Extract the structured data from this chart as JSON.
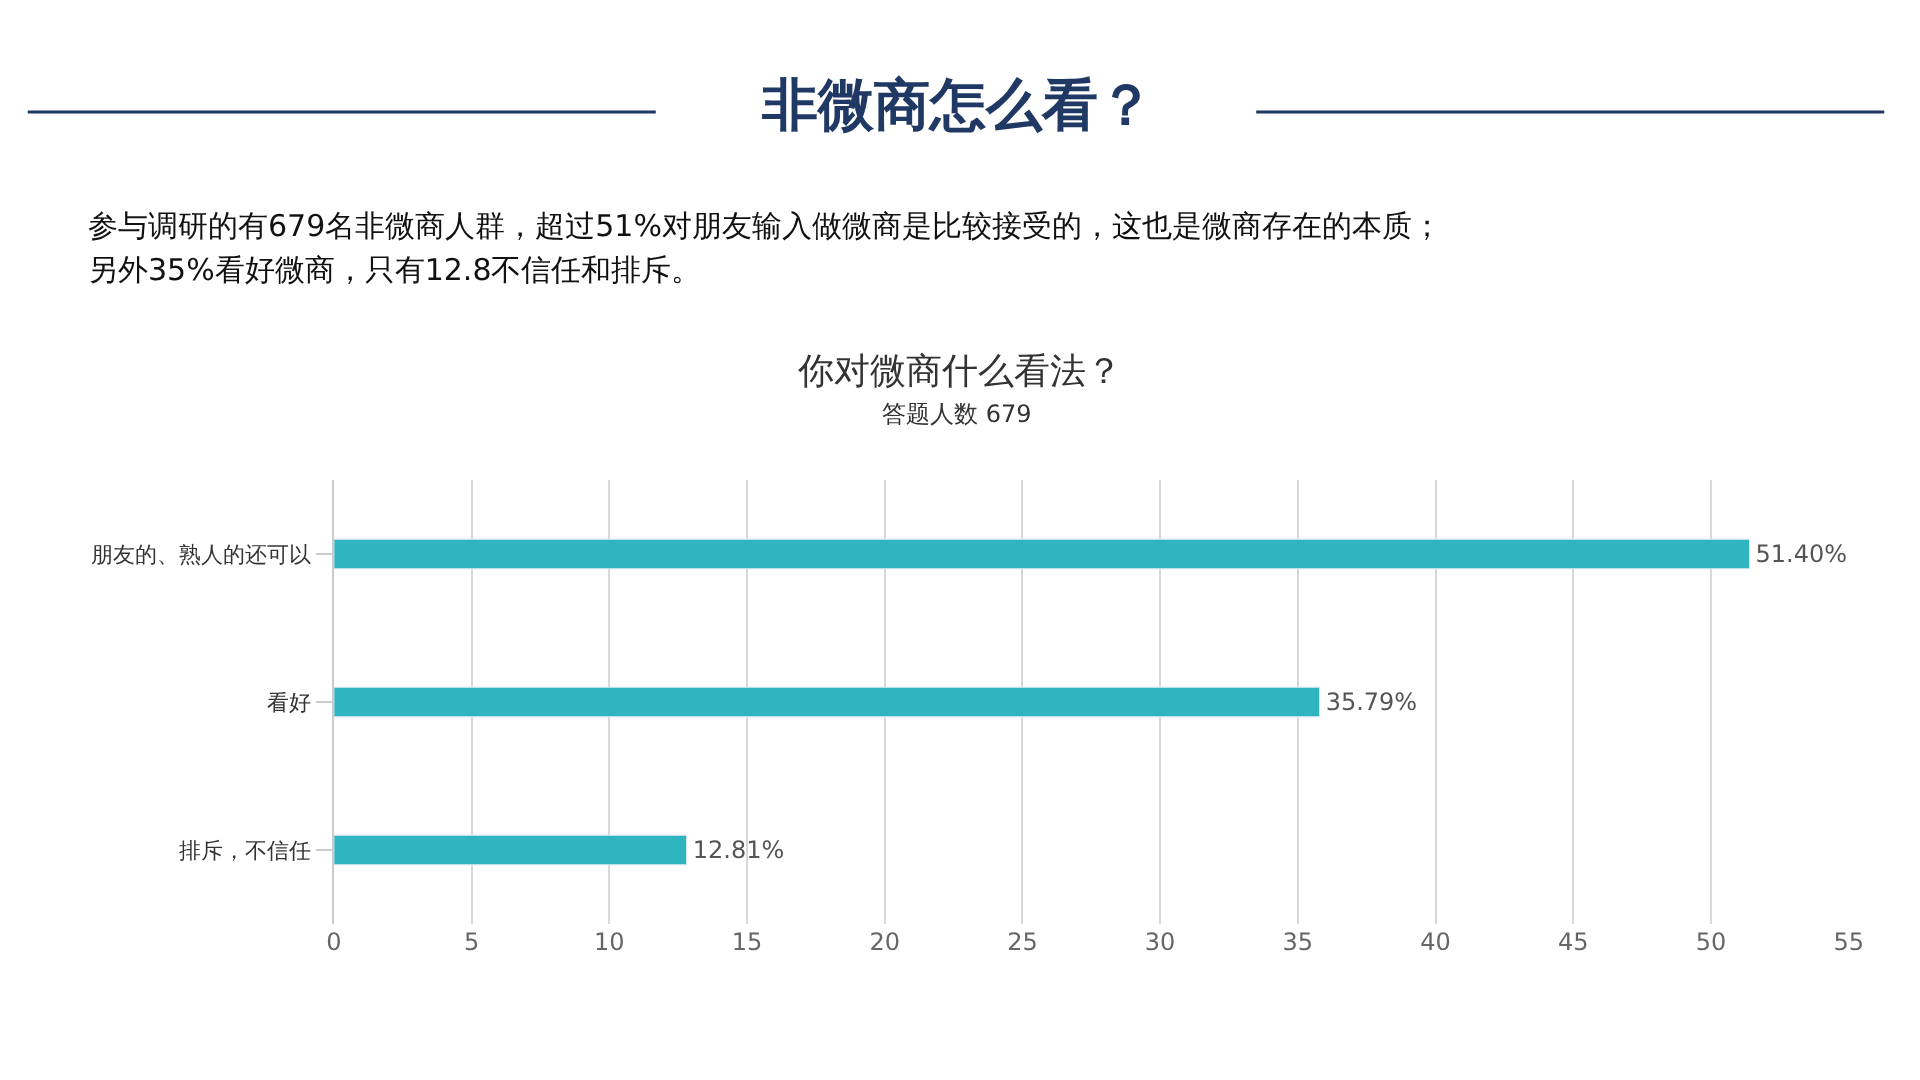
{
  "chart_data": {
    "type": "bar",
    "orientation": "horizontal",
    "title": "你对微商什么看法？",
    "subtitle": "答题人数 679",
    "annotations": [
      "非微商怎么看？",
      "参与调研的有679名非微商人群，超过51%对朋友输入做微商是比较接受的，这也是微商存在的本质；",
      "另外35%看好微商，只有12.8不信任和排斥。"
    ],
    "categories": [
      "朋友的、熟人的还可以",
      "看好",
      "排斥，不信任"
    ],
    "values": [
      51.4,
      35.79,
      12.81
    ],
    "value_labels": [
      "51.40%",
      "35.79%",
      "12.81%"
    ],
    "color": "#2fb5bf",
    "xlim": [
      0,
      55
    ],
    "xticks": [
      0,
      5,
      10,
      15,
      20,
      25,
      30,
      35,
      40,
      45,
      50,
      55
    ],
    "grid": "x"
  }
}
